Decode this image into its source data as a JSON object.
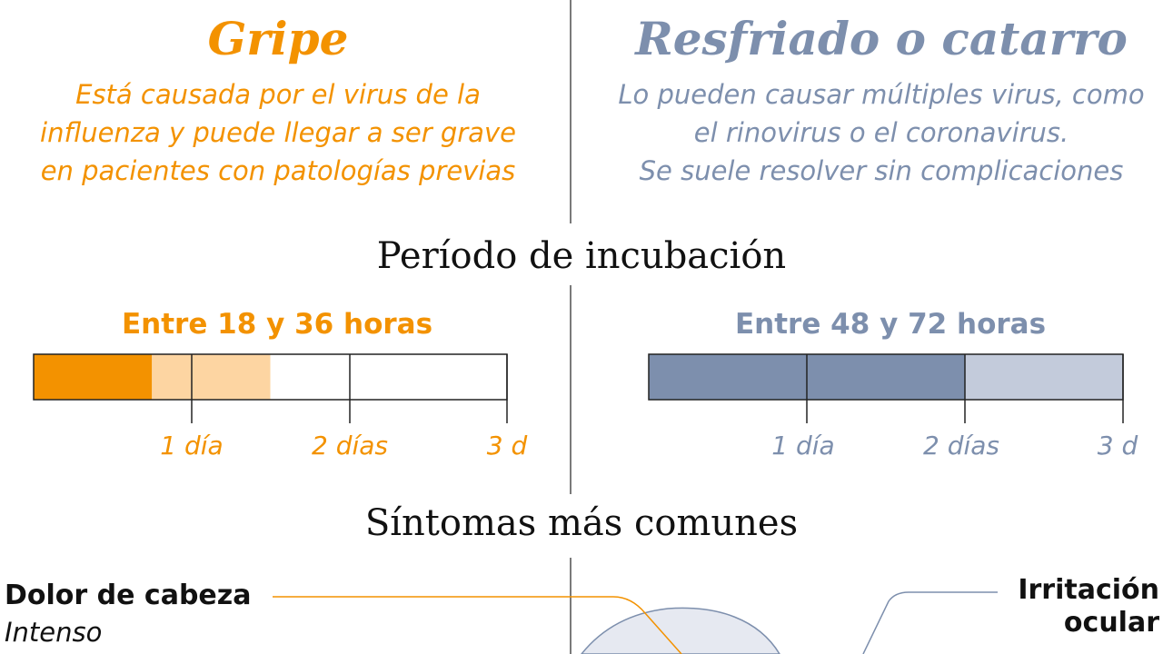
{
  "colors": {
    "flu_accent": "#f39200",
    "flu_light": "#fdd5a2",
    "cold_accent": "#7d8fad",
    "cold_light": "#c3cbdb",
    "divider": "#7a7a7a",
    "figure_fill": "#e6e9f1"
  },
  "flu": {
    "title": "Gripe",
    "description": [
      "Está causada por el virus de la",
      "influenza y puede llegar a ser grave",
      "en pacientes con patologías previas"
    ],
    "incubation_label": "Entre 18 y 36 horas",
    "incubation_days_min": 0.75,
    "incubation_days_max": 1.5,
    "axis_max_days": 3,
    "ticks": [
      "1 día",
      "2 días",
      "3 d"
    ]
  },
  "cold": {
    "title": "Resfriado o catarro",
    "description": [
      "Lo pueden causar múltiples virus, como",
      "el rinovirus o el coronavirus.",
      "Se suele resolver sin complicaciones"
    ],
    "incubation_label": "Entre 48 y 72 horas",
    "incubation_days_min": 2,
    "incubation_days_max": 3,
    "axis_max_days": 3,
    "ticks": [
      "1 día",
      "2 días",
      "3 d"
    ]
  },
  "sections": {
    "incubation": "Período de incubación",
    "symptoms": "Síntomas más comunes"
  },
  "symptoms": {
    "headache": {
      "title": "Dolor de cabeza",
      "detail": "Intenso"
    },
    "eye_irritation": {
      "title_lines": [
        "Irritación",
        "ocular"
      ]
    }
  }
}
